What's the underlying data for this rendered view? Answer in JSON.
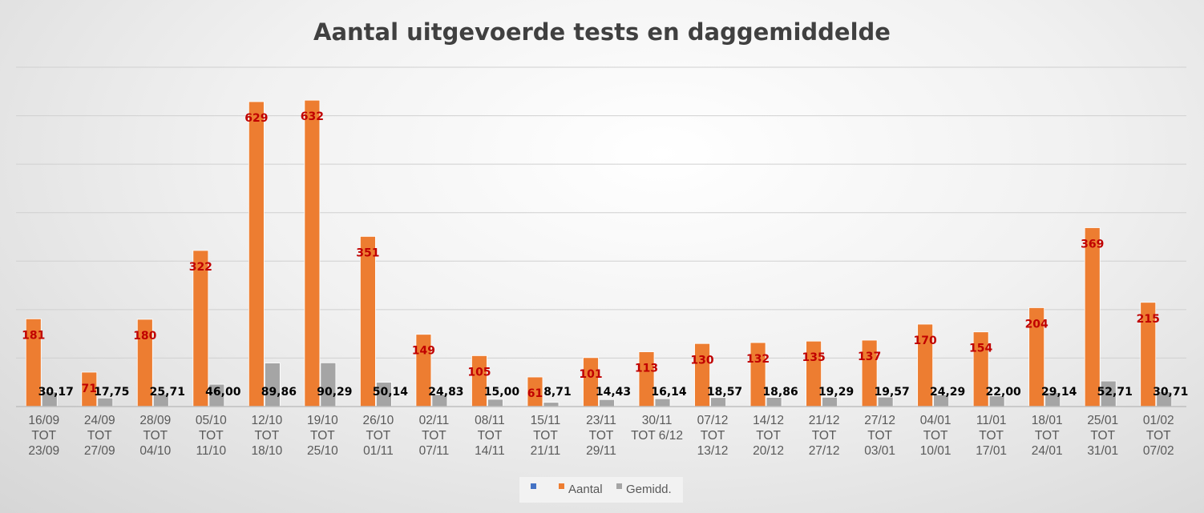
{
  "chart_data": {
    "type": "bar",
    "title": "Aantal uitgevoerde tests en daggemiddelde",
    "ylim": [
      0,
      700
    ],
    "grid": true,
    "legend_position": "bottom",
    "categories": [
      [
        "16/09",
        "TOT",
        "23/09"
      ],
      [
        "24/09",
        "TOT",
        "27/09"
      ],
      [
        "28/09",
        "TOT",
        "04/10"
      ],
      [
        "05/10",
        "TOT",
        "11/10"
      ],
      [
        "12/10",
        "TOT",
        "18/10"
      ],
      [
        "19/10",
        "TOT",
        "25/10"
      ],
      [
        "26/10",
        "TOT",
        "01/11"
      ],
      [
        "02/11",
        "TOT",
        "07/11"
      ],
      [
        "08/11",
        "TOT",
        "14/11"
      ],
      [
        "15/11",
        "TOT",
        "21/11"
      ],
      [
        "23/11",
        "TOT",
        "29/11"
      ],
      [
        "30/11",
        "TOT 6/12"
      ],
      [
        "07/12",
        "TOT",
        "13/12"
      ],
      [
        "14/12",
        "TOT",
        "20/12"
      ],
      [
        "21/12",
        "TOT",
        "27/12"
      ],
      [
        "27/12",
        "TOT",
        "03/01"
      ],
      [
        "04/01",
        "TOT",
        "10/01"
      ],
      [
        "11/01",
        "TOT",
        "17/01"
      ],
      [
        "18/01",
        "TOT",
        "24/01"
      ],
      [
        "25/01",
        "TOT",
        "31/01"
      ],
      [
        "01/02",
        "TOT",
        "07/02"
      ]
    ],
    "legend": [
      {
        "name": "",
        "color": "#4472c4"
      },
      {
        "name": "Aantal",
        "color": "#ed7d31"
      },
      {
        "name": "Gemidd.",
        "color": "#a5a5a5"
      }
    ],
    "series": [
      {
        "name": "Aantal",
        "color": "#ed7d31",
        "values": [
          181,
          71,
          180,
          322,
          629,
          632,
          351,
          149,
          105,
          61,
          101,
          113,
          130,
          132,
          135,
          137,
          170,
          154,
          204,
          369,
          215
        ],
        "labels": [
          "181",
          "71",
          "180",
          "322",
          "629",
          "632",
          "351",
          "149",
          "105",
          "61",
          "101",
          "113",
          "130",
          "132",
          "135",
          "137",
          "170",
          "154",
          "204",
          "369",
          "215"
        ]
      },
      {
        "name": "Gemidd.",
        "color": "#a5a5a5",
        "values": [
          30.17,
          17.75,
          25.71,
          46.0,
          89.86,
          90.29,
          50.14,
          24.83,
          15.0,
          8.71,
          14.43,
          16.14,
          18.57,
          18.86,
          19.29,
          19.57,
          24.29,
          22.0,
          29.14,
          52.71,
          30.71
        ],
        "labels": [
          "30,17",
          "17,75",
          "25,71",
          "46,00",
          "89,86",
          "90,29",
          "50,14",
          "24,83",
          "15,00",
          "8,71",
          "14,43",
          "16,14",
          "18,57",
          "18,86",
          "19,29",
          "19,57",
          "24,29",
          "22,00",
          "29,14",
          "52,71",
          "30,71"
        ]
      }
    ]
  }
}
